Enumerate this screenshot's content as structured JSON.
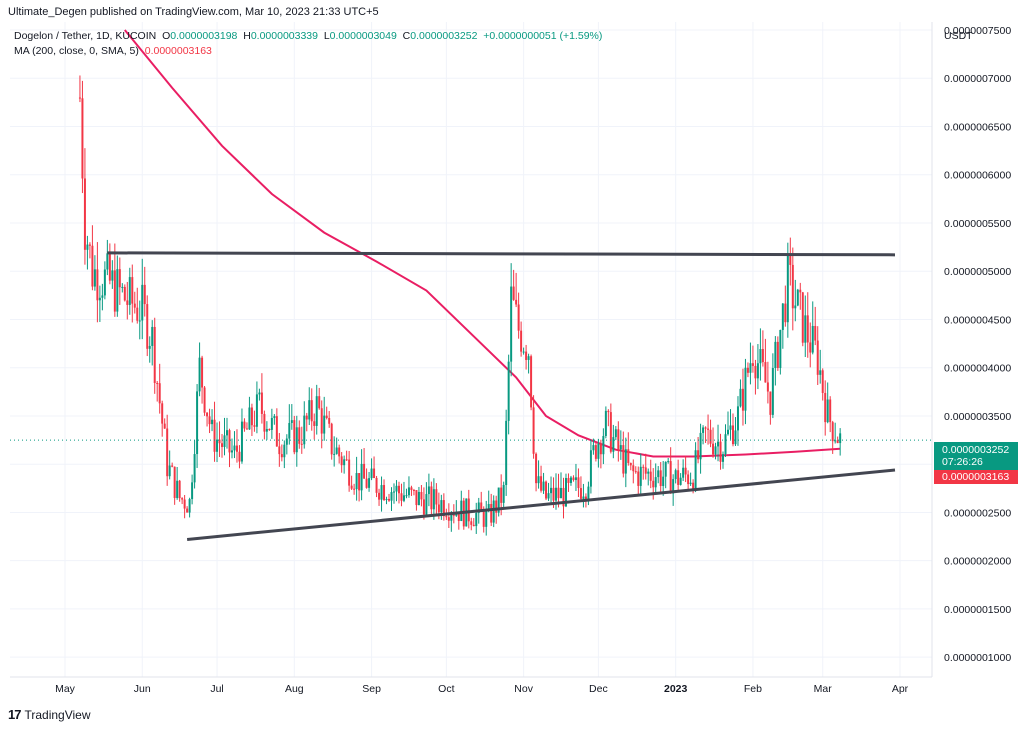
{
  "header": {
    "published": "Ultimate_Degen published on TradingView.com, Mar 10, 2023 21:33 UTC+5"
  },
  "legend": {
    "symbol": "Dogelon / Tether, 1D, KUCOIN",
    "o_label": "O",
    "o_value": "0.0000003198",
    "h_label": "H",
    "h_value": "0.0000003339",
    "l_label": "L",
    "l_value": "0.0000003049",
    "c_label": "C",
    "c_value": "0.0000003252",
    "change": "+0.0000000051 (+1.59%)",
    "ma_label": "MA (200, close, 0, SMA, 5)",
    "ma_value": "0.0000003163"
  },
  "price_axis": {
    "currency": "USDT",
    "last_price": "0.0000003252",
    "countdown": "07:26:26",
    "ma_price": "0.0000003163"
  },
  "branding": {
    "logo": "17",
    "name": "TradingView"
  },
  "colors": {
    "up": "#089981",
    "down": "#f23645",
    "ma": "#e91e63",
    "trendline": "#434651",
    "grid": "#f0f3fa"
  },
  "chart_data": {
    "type": "candlestick",
    "x_ticks": [
      "May",
      "Jun",
      "Jul",
      "Aug",
      "Sep",
      "Oct",
      "Nov",
      "Dec",
      "2023",
      "Feb",
      "Mar",
      "Apr"
    ],
    "y_ticks": [
      "0.0000007500",
      "0.0000007000",
      "0.0000006500",
      "0.0000006000",
      "0.0000005500",
      "0.0000005000",
      "0.0000004500",
      "0.0000004000",
      "0.0000003500",
      "0.0000003000",
      "0.0000002500",
      "0.0000002000",
      "0.0000001500",
      "0.0000001000"
    ],
    "ylim": [
      9.5e-08,
      7.5e-07
    ],
    "close_anchors": [
      [
        "2022-05-09",
        6.8e-07
      ],
      [
        "2022-05-11",
        5.5e-07
      ],
      [
        "2022-05-14",
        5e-07
      ],
      [
        "2022-05-20",
        4.9e-07
      ],
      [
        "2022-05-28",
        4.7e-07
      ],
      [
        "2022-06-03",
        4.6e-07
      ],
      [
        "2022-06-07",
        4.3e-07
      ],
      [
        "2022-06-13",
        3e-07
      ],
      [
        "2022-06-18",
        2.65e-07
      ],
      [
        "2022-06-22",
        2.6e-07
      ],
      [
        "2022-06-26",
        4e-07
      ],
      [
        "2022-07-01",
        3.3e-07
      ],
      [
        "2022-07-10",
        3.1e-07
      ],
      [
        "2022-07-20",
        3.6e-07
      ],
      [
        "2022-07-28",
        3.25e-07
      ],
      [
        "2022-08-05",
        3.3e-07
      ],
      [
        "2022-08-12",
        3.6e-07
      ],
      [
        "2022-08-18",
        3.2e-07
      ],
      [
        "2022-08-28",
        2.85e-07
      ],
      [
        "2022-09-10",
        2.75e-07
      ],
      [
        "2022-09-20",
        2.65e-07
      ],
      [
        "2022-10-01",
        2.6e-07
      ],
      [
        "2022-10-10",
        2.5e-07
      ],
      [
        "2022-10-20",
        2.45e-07
      ],
      [
        "2022-10-26",
        2.7e-07
      ],
      [
        "2022-10-29",
        4.7e-07
      ],
      [
        "2022-11-01",
        4.4e-07
      ],
      [
        "2022-11-05",
        4.2e-07
      ],
      [
        "2022-11-08",
        2.8e-07
      ],
      [
        "2022-11-12",
        2.65e-07
      ],
      [
        "2022-11-20",
        2.7e-07
      ],
      [
        "2022-11-28",
        2.8e-07
      ],
      [
        "2022-12-02",
        3.2e-07
      ],
      [
        "2022-12-06",
        3.4e-07
      ],
      [
        "2022-12-12",
        3.1e-07
      ],
      [
        "2022-12-16",
        2.9e-07
      ],
      [
        "2022-12-26",
        2.9e-07
      ],
      [
        "2023-01-03",
        2.85e-07
      ],
      [
        "2023-01-10",
        2.9e-07
      ],
      [
        "2023-01-15",
        3.3e-07
      ],
      [
        "2023-01-22",
        3.2e-07
      ],
      [
        "2023-01-28",
        3.5e-07
      ],
      [
        "2023-02-03",
        4.2e-07
      ],
      [
        "2023-02-10",
        3.7e-07
      ],
      [
        "2023-02-17",
        4.9e-07
      ],
      [
        "2023-02-24",
        4.4e-07
      ],
      [
        "2023-03-01",
        4.1e-07
      ],
      [
        "2023-03-05",
        3.5e-07
      ],
      [
        "2023-03-10",
        3.25e-07
      ]
    ],
    "ma_anchors": [
      [
        "2022-05-27",
        7.5e-07
      ],
      [
        "2022-06-15",
        6.9e-07
      ],
      [
        "2022-07-05",
        6.3e-07
      ],
      [
        "2022-07-25",
        5.8e-07
      ],
      [
        "2022-08-15",
        5.4e-07
      ],
      [
        "2022-09-05",
        5.1e-07
      ],
      [
        "2022-09-25",
        4.8e-07
      ],
      [
        "2022-10-15",
        4.3e-07
      ],
      [
        "2022-10-31",
        3.9e-07
      ],
      [
        "2022-11-12",
        3.5e-07
      ],
      [
        "2022-11-25",
        3.3e-07
      ],
      [
        "2022-12-10",
        3.15e-07
      ],
      [
        "2022-12-25",
        3.08e-07
      ],
      [
        "2023-01-10",
        3.08e-07
      ],
      [
        "2023-01-31",
        3.1e-07
      ],
      [
        "2023-02-20",
        3.13e-07
      ],
      [
        "2023-03-10",
        3.16e-07
      ]
    ],
    "trendlines": [
      {
        "name": "resistance",
        "start": [
          "2022-05-20",
          5.19e-07
        ],
        "end": [
          "2023-04-01",
          5.17e-07
        ]
      },
      {
        "name": "support",
        "start": [
          "2022-06-21",
          2.22e-07
        ],
        "end": [
          "2023-04-01",
          2.94e-07
        ]
      }
    ]
  }
}
